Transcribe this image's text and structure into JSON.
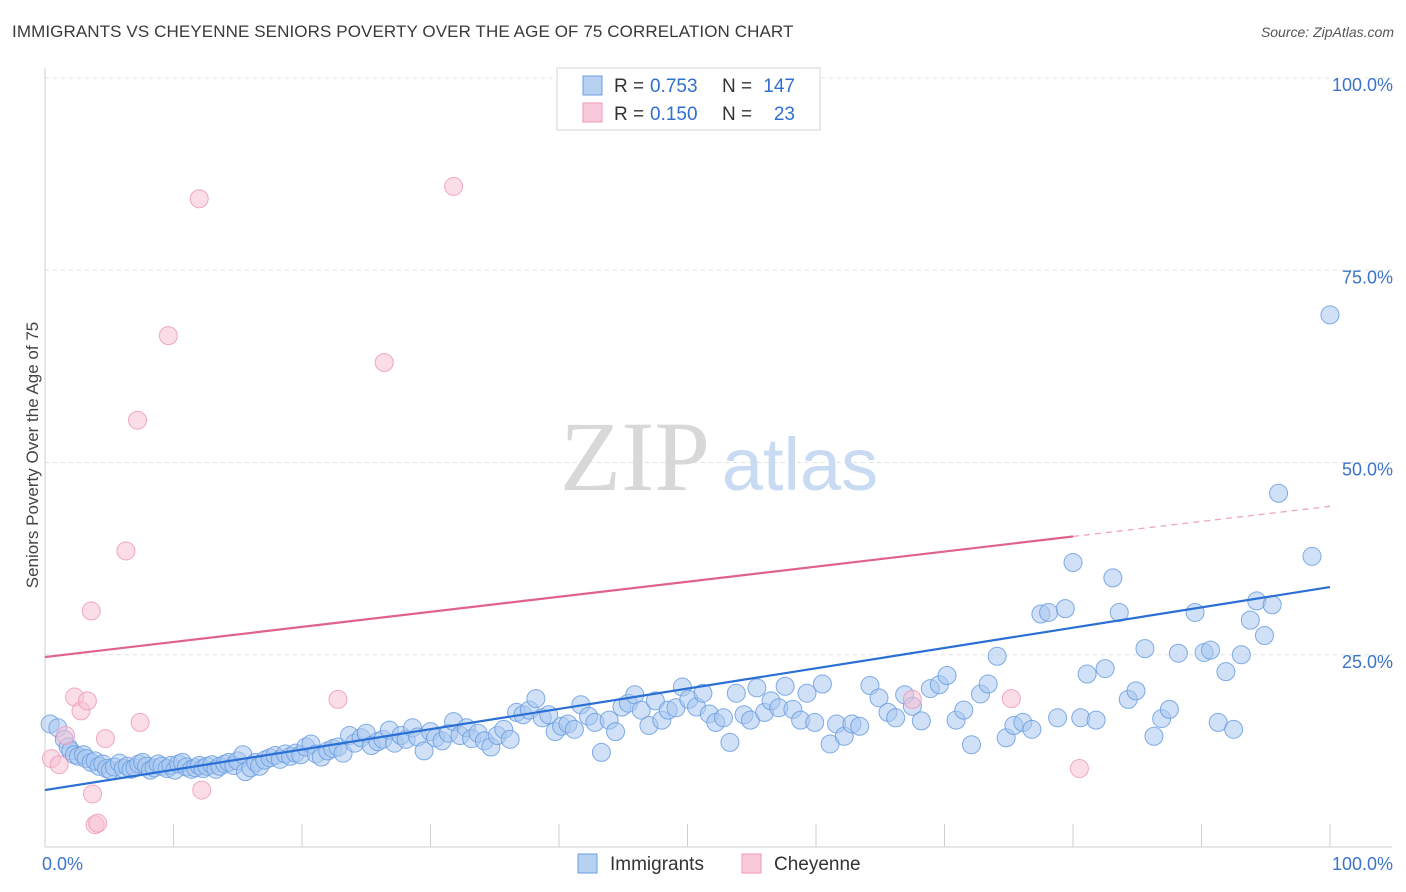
{
  "header": {
    "title": "IMMIGRANTS VS CHEYENNE SENIORS POVERTY OVER THE AGE OF 75 CORRELATION CHART",
    "source": "Source: ZipAtlas.com"
  },
  "watermark": {
    "zip": "ZIP",
    "atlas": "atlas"
  },
  "legend_box": {
    "rows": [
      {
        "r_label": "R =",
        "r_value": "0.753",
        "n_label": "N =",
        "n_value": "147",
        "color": "#6699dd"
      },
      {
        "r_label": "R =",
        "r_value": "0.150",
        "n_label": "N =",
        "n_value": "23",
        "color": "#ee88aa"
      }
    ]
  },
  "chart_data": {
    "type": "scatter",
    "title": "IMMIGRANTS VS CHEYENNE SENIORS POVERTY OVER THE AGE OF 75 CORRELATION CHART",
    "xlabel": "",
    "ylabel": "Seniors Poverty Over the Age of 75",
    "xlim": [
      0,
      100
    ],
    "ylim": [
      0,
      100
    ],
    "x_tick_labels": [
      "0.0%",
      "100.0%"
    ],
    "y_tick_labels": [
      {
        "value": 100,
        "label": "100.0%"
      },
      {
        "value": 75,
        "label": "75.0%"
      },
      {
        "value": 50,
        "label": "50.0%"
      },
      {
        "value": 25,
        "label": "25.0%"
      }
    ],
    "grid": true,
    "legend_placement": "bottom",
    "series": [
      {
        "name": "Immigrants",
        "color": "#6a9ee0",
        "fill": "#a9c8f0",
        "trend": {
          "x0": 0,
          "y0": 7.4,
          "x1": 100,
          "y1": 33.8,
          "dashed_from": null
        },
        "points": [
          [
            0.4,
            16
          ],
          [
            1,
            15.5
          ],
          [
            1.5,
            14
          ],
          [
            1.8,
            13
          ],
          [
            2,
            12.5
          ],
          [
            2.3,
            12
          ],
          [
            2.6,
            11.8
          ],
          [
            3,
            12
          ],
          [
            3.2,
            11.5
          ],
          [
            3.6,
            11
          ],
          [
            3.9,
            11.2
          ],
          [
            4.2,
            10.5
          ],
          [
            4.5,
            10.8
          ],
          [
            4.8,
            10.2
          ],
          [
            5.1,
            10
          ],
          [
            5.4,
            10.4
          ],
          [
            5.8,
            10.9
          ],
          [
            6.1,
            10.2
          ],
          [
            6.4,
            10.5
          ],
          [
            6.7,
            10.1
          ],
          [
            7,
            10.3
          ],
          [
            7.3,
            10.8
          ],
          [
            7.6,
            11
          ],
          [
            7.9,
            10.5
          ],
          [
            8.2,
            10
          ],
          [
            8.5,
            10.3
          ],
          [
            8.8,
            10.8
          ],
          [
            9.1,
            10.5
          ],
          [
            9.5,
            10.2
          ],
          [
            9.8,
            10.6
          ],
          [
            10.1,
            10
          ],
          [
            10.4,
            10.8
          ],
          [
            10.7,
            11
          ],
          [
            11,
            10.4
          ],
          [
            11.4,
            10.1
          ],
          [
            11.7,
            10.3
          ],
          [
            12,
            10.6
          ],
          [
            12.3,
            10.2
          ],
          [
            12.6,
            10.5
          ],
          [
            13,
            10.7
          ],
          [
            13.3,
            10.1
          ],
          [
            13.6,
            10.5
          ],
          [
            14,
            10.8
          ],
          [
            14.3,
            11
          ],
          [
            14.7,
            10.6
          ],
          [
            15,
            11.2
          ],
          [
            15.4,
            12
          ],
          [
            15.6,
            9.8
          ],
          [
            16,
            10.3
          ],
          [
            16.4,
            11
          ],
          [
            16.7,
            10.5
          ],
          [
            17.1,
            11.3
          ],
          [
            17.5,
            11.6
          ],
          [
            17.9,
            11.9
          ],
          [
            18.3,
            11.4
          ],
          [
            18.7,
            12.1
          ],
          [
            19.1,
            11.8
          ],
          [
            19.5,
            12.2
          ],
          [
            19.9,
            12
          ],
          [
            20.3,
            13
          ],
          [
            20.7,
            13.4
          ],
          [
            21.1,
            12.1
          ],
          [
            21.5,
            11.7
          ],
          [
            22,
            12.5
          ],
          [
            22.4,
            12.8
          ],
          [
            22.8,
            13
          ],
          [
            23.2,
            12.2
          ],
          [
            23.7,
            14.5
          ],
          [
            24.1,
            13.5
          ],
          [
            24.6,
            14.2
          ],
          [
            25,
            14.8
          ],
          [
            25.4,
            13.2
          ],
          [
            25.9,
            13.7
          ],
          [
            26.3,
            14
          ],
          [
            26.8,
            15.2
          ],
          [
            27.2,
            13.5
          ],
          [
            27.7,
            14.5
          ],
          [
            28.1,
            14
          ],
          [
            28.6,
            15.5
          ],
          [
            29,
            14.3
          ],
          [
            29.5,
            12.5
          ],
          [
            30,
            15
          ],
          [
            30.4,
            14.2
          ],
          [
            30.9,
            13.8
          ],
          [
            31.4,
            14.8
          ],
          [
            31.8,
            16.3
          ],
          [
            32.3,
            14.5
          ],
          [
            32.8,
            15.5
          ],
          [
            33.2,
            14.1
          ],
          [
            33.7,
            14.8
          ],
          [
            34.2,
            13.8
          ],
          [
            34.7,
            13
          ],
          [
            35.2,
            14.5
          ],
          [
            35.7,
            15.3
          ],
          [
            36.2,
            14
          ],
          [
            36.7,
            17.5
          ],
          [
            37.2,
            17.2
          ],
          [
            37.7,
            17.8
          ],
          [
            38.2,
            19.3
          ],
          [
            38.7,
            16.8
          ],
          [
            39.2,
            17.2
          ],
          [
            39.7,
            15
          ],
          [
            40.2,
            15.7
          ],
          [
            40.7,
            16
          ],
          [
            41.2,
            15.3
          ],
          [
            41.7,
            18.5
          ],
          [
            42.3,
            17
          ],
          [
            42.8,
            16.2
          ],
          [
            43.3,
            12.3
          ],
          [
            43.9,
            16.5
          ],
          [
            44.4,
            15
          ],
          [
            44.9,
            18.2
          ],
          [
            45.4,
            18.7
          ],
          [
            45.9,
            19.8
          ],
          [
            46.4,
            17.8
          ],
          [
            47,
            15.8
          ],
          [
            47.5,
            19
          ],
          [
            48,
            16.5
          ],
          [
            48.5,
            17.8
          ],
          [
            49.1,
            18.1
          ],
          [
            49.6,
            20.8
          ],
          [
            50.1,
            19.2
          ],
          [
            50.7,
            18.2
          ],
          [
            51.2,
            20
          ],
          [
            51.7,
            17.3
          ],
          [
            52.2,
            16.2
          ],
          [
            52.8,
            16.8
          ],
          [
            53.3,
            13.6
          ],
          [
            53.8,
            20
          ],
          [
            54.4,
            17.2
          ],
          [
            54.9,
            16.5
          ],
          [
            55.4,
            20.7
          ],
          [
            56,
            17.5
          ],
          [
            56.5,
            19
          ],
          [
            57.1,
            18.1
          ],
          [
            57.6,
            20.9
          ],
          [
            58.2,
            17.9
          ],
          [
            58.8,
            16.5
          ],
          [
            59.3,
            20
          ],
          [
            59.9,
            16.2
          ],
          [
            60.5,
            21.2
          ],
          [
            61.1,
            13.4
          ],
          [
            61.6,
            16
          ],
          [
            62.2,
            14.4
          ],
          [
            62.8,
            16
          ],
          [
            63.4,
            15.7
          ],
          [
            64.2,
            21
          ],
          [
            64.9,
            19.4
          ],
          [
            65.6,
            17.5
          ],
          [
            66.2,
            16.8
          ],
          [
            66.9,
            19.8
          ],
          [
            67.5,
            18.3
          ],
          [
            68.2,
            16.4
          ],
          [
            68.9,
            20.6
          ],
          [
            69.6,
            21.1
          ],
          [
            70.2,
            22.3
          ],
          [
            70.9,
            16.5
          ],
          [
            71.5,
            17.8
          ],
          [
            72.1,
            13.3
          ],
          [
            72.8,
            19.9
          ],
          [
            73.4,
            21.2
          ],
          [
            74.1,
            24.8
          ],
          [
            74.8,
            14.2
          ],
          [
            75.4,
            15.8
          ],
          [
            76.1,
            16.2
          ],
          [
            76.8,
            15.3
          ],
          [
            77.5,
            30.3
          ],
          [
            78.1,
            30.5
          ],
          [
            78.8,
            16.8
          ],
          [
            79.4,
            31
          ],
          [
            80,
            37
          ],
          [
            80.6,
            16.8
          ],
          [
            81.1,
            22.5
          ],
          [
            81.8,
            16.5
          ],
          [
            82.5,
            23.2
          ],
          [
            83.1,
            35
          ],
          [
            83.6,
            30.5
          ],
          [
            84.3,
            19.2
          ],
          [
            84.9,
            20.3
          ],
          [
            85.6,
            25.8
          ],
          [
            86.3,
            14.4
          ],
          [
            86.9,
            16.7
          ],
          [
            87.5,
            17.9
          ],
          [
            88.2,
            25.2
          ],
          [
            89.5,
            30.5
          ],
          [
            90.2,
            25.3
          ],
          [
            90.7,
            25.6
          ],
          [
            91.3,
            16.2
          ],
          [
            91.9,
            22.8
          ],
          [
            92.5,
            15.3
          ],
          [
            93.1,
            25
          ],
          [
            93.8,
            29.5
          ],
          [
            94.3,
            32
          ],
          [
            94.9,
            27.5
          ],
          [
            95.5,
            31.5
          ],
          [
            96,
            46
          ],
          [
            98.6,
            37.8
          ],
          [
            100,
            69.2
          ]
        ]
      },
      {
        "name": "Cheyenne",
        "color": "#ee99bb",
        "fill": "#f7c1d3",
        "trend": {
          "x0": 0,
          "y0": 24.7,
          "x1": 100,
          "y1": 44.3,
          "dashed_from": 80
        },
        "points": [
          [
            0.5,
            11.5
          ],
          [
            1.1,
            10.7
          ],
          [
            1.6,
            14.5
          ],
          [
            3.7,
            6.9
          ],
          [
            3.9,
            2.9
          ],
          [
            4.1,
            3.1
          ],
          [
            2.3,
            19.5
          ],
          [
            2.8,
            17.7
          ],
          [
            3.3,
            19
          ],
          [
            4.7,
            14.1
          ],
          [
            3.6,
            30.7
          ],
          [
            6.3,
            38.5
          ],
          [
            7.2,
            55.5
          ],
          [
            7.4,
            16.2
          ],
          [
            9.6,
            66.5
          ],
          [
            12,
            84.3
          ],
          [
            31.8,
            85.9
          ],
          [
            26.4,
            63
          ],
          [
            12.2,
            7.4
          ],
          [
            67.5,
            19.2
          ],
          [
            75.2,
            19.3
          ],
          [
            80.5,
            10.2
          ],
          [
            22.8,
            19.2
          ]
        ]
      }
    ]
  }
}
